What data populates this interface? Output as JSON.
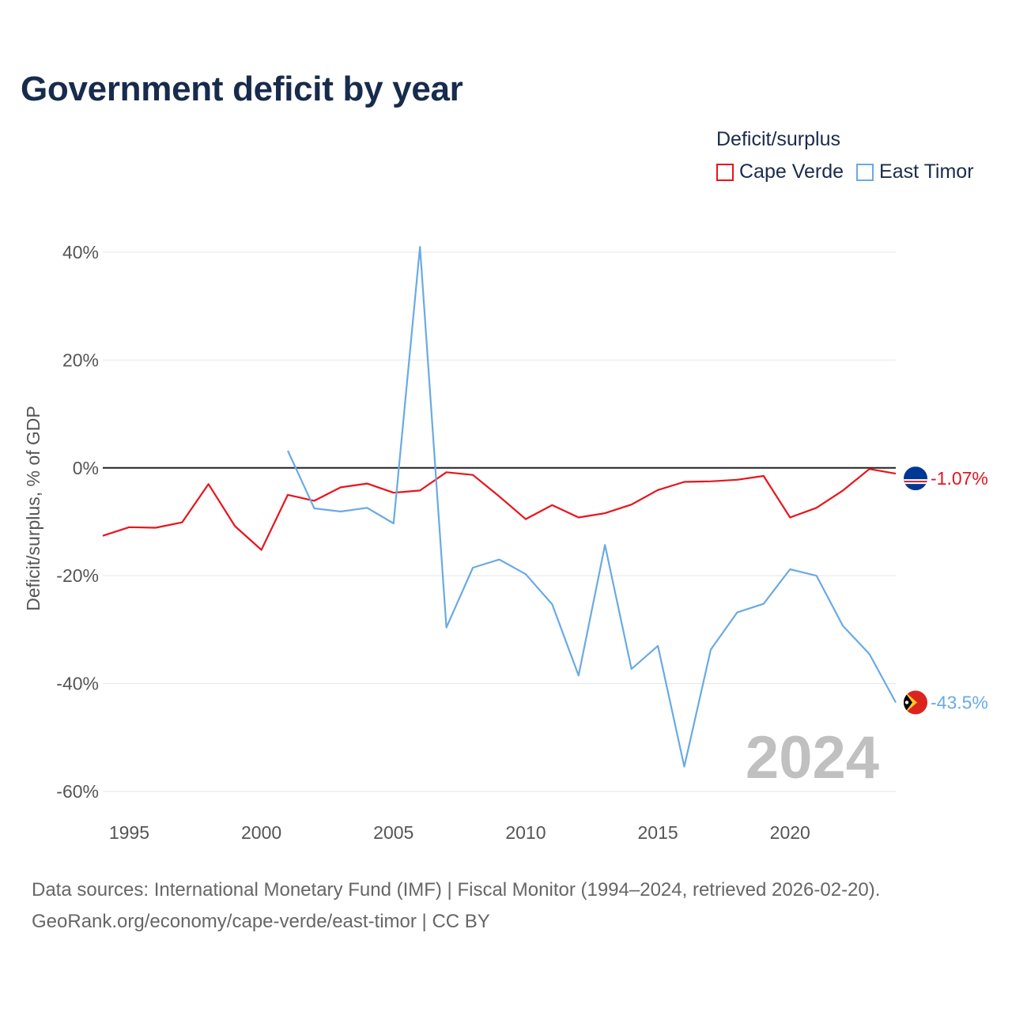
{
  "title": "Government deficit by year",
  "legend": {
    "title": "Deficit/surplus",
    "items": [
      {
        "label": "Cape Verde",
        "color": "#e8141c"
      },
      {
        "label": "East Timor",
        "color": "#6aaae4"
      }
    ]
  },
  "chart_data": {
    "type": "line",
    "ylabel": "Deficit/surplus, % of GDP",
    "xlabel": "",
    "ylim": [
      -60,
      40
    ],
    "xlim": [
      1994,
      2024
    ],
    "y_ticks": [
      40,
      20,
      0,
      -20,
      -40,
      -60
    ],
    "y_tick_labels": [
      "40%",
      "20%",
      "0%",
      "-20%",
      "-40%",
      "-60%"
    ],
    "x_ticks": [
      1995,
      2000,
      2005,
      2010,
      2015,
      2020
    ],
    "x_tick_labels": [
      "1995",
      "2000",
      "2005",
      "2010",
      "2015",
      "2020"
    ],
    "year_label": "2024",
    "series": [
      {
        "name": "Cape Verde",
        "color": "#e8141c",
        "end_label": "-1.07%",
        "flag": "cape-verde-flag-icon",
        "x": [
          1994,
          1995,
          1996,
          1997,
          1998,
          1999,
          2000,
          2001,
          2002,
          2003,
          2004,
          2005,
          2006,
          2007,
          2008,
          2009,
          2010,
          2011,
          2012,
          2013,
          2014,
          2015,
          2016,
          2017,
          2018,
          2019,
          2020,
          2021,
          2022,
          2023,
          2024
        ],
        "values": [
          -12.6,
          -11.0,
          -11.1,
          -10.1,
          -3.0,
          -10.8,
          -15.2,
          -5.0,
          -6.1,
          -3.6,
          -2.9,
          -4.6,
          -4.2,
          -0.8,
          -1.3,
          -5.3,
          -9.5,
          -6.9,
          -9.2,
          -8.4,
          -6.8,
          -4.1,
          -2.6,
          -2.5,
          -2.2,
          -1.5,
          -9.2,
          -7.4,
          -4.2,
          -0.2,
          -1.07
        ]
      },
      {
        "name": "East Timor",
        "color": "#6aaae4",
        "end_label": "-43.5%",
        "flag": "east-timor-flag-icon",
        "x": [
          2001,
          2002,
          2003,
          2004,
          2005,
          2006,
          2007,
          2008,
          2009,
          2010,
          2011,
          2012,
          2013,
          2014,
          2015,
          2016,
          2017,
          2018,
          2019,
          2020,
          2021,
          2022,
          2023,
          2024
        ],
        "values": [
          3.2,
          -7.5,
          -8.1,
          -7.4,
          -10.3,
          41.0,
          -29.6,
          -18.5,
          -17.0,
          -19.7,
          -25.3,
          -38.5,
          -14.3,
          -37.3,
          -33.0,
          -55.4,
          -33.7,
          -26.8,
          -25.2,
          -18.8,
          -20.0,
          -29.3,
          -34.5,
          -43.5
        ]
      }
    ]
  },
  "footer": {
    "line1": "Data sources: International Monetary Fund (IMF) | Fiscal Monitor (1994–2024, retrieved 2026-02-20).",
    "line2": "GeoRank.org/economy/cape-verde/east-timor | CC BY"
  }
}
